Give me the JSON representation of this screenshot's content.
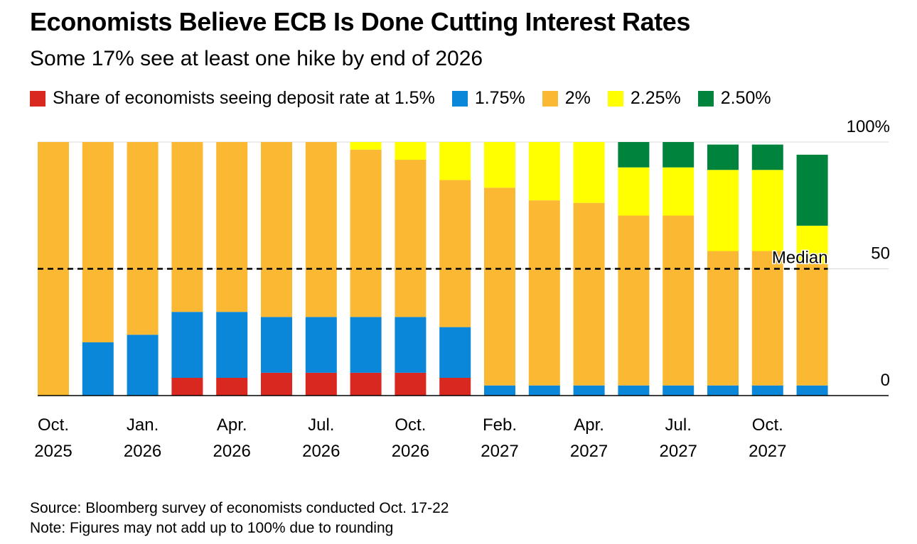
{
  "title": "Economists Believe ECB Is Done Cutting Interest Rates",
  "subtitle": "Some 17% see at least one hike by end of 2026",
  "legend": [
    {
      "label": "Share of economists seeing deposit rate at 1.5%",
      "color": "#d9281f"
    },
    {
      "label": "1.75%",
      "color": "#0b87d9"
    },
    {
      "label": "2%",
      "color": "#fbb832"
    },
    {
      "label": "2.25%",
      "color": "#ffff00"
    },
    {
      "label": "2.50%",
      "color": "#00843d"
    }
  ],
  "footer": {
    "source": "Source: Bloomberg survey of economists conducted Oct. 17-22",
    "note": "Note: Figures may not add up to 100% due to rounding"
  },
  "chart_data": {
    "type": "bar",
    "stacked": true,
    "ylim": [
      0,
      100
    ],
    "yticks": [
      {
        "value": 100,
        "label": "100%"
      },
      {
        "value": 50,
        "label": "50"
      },
      {
        "value": 0,
        "label": "0"
      }
    ],
    "median": {
      "value": 50,
      "label": "Median"
    },
    "x_labels": [
      {
        "index": 0,
        "month": "Oct.",
        "year": "2025"
      },
      {
        "index": 2,
        "month": "Jan.",
        "year": "2026"
      },
      {
        "index": 4,
        "month": "Apr.",
        "year": "2026"
      },
      {
        "index": 6,
        "month": "Jul.",
        "year": "2026"
      },
      {
        "index": 8,
        "month": "Oct.",
        "year": "2026"
      },
      {
        "index": 10,
        "month": "Feb.",
        "year": "2027"
      },
      {
        "index": 12,
        "month": "Apr.",
        "year": "2027"
      },
      {
        "index": 14,
        "month": "Jul.",
        "year": "2027"
      },
      {
        "index": 16,
        "month": "Oct.",
        "year": "2027"
      }
    ],
    "series": [
      {
        "name": "1.5%",
        "color": "#d9281f",
        "values": [
          0,
          0,
          0,
          7,
          7,
          9,
          9,
          9,
          9,
          7,
          0,
          0,
          0,
          0,
          0,
          0,
          0,
          0
        ]
      },
      {
        "name": "1.75%",
        "color": "#0b87d9",
        "values": [
          0,
          21,
          24,
          26,
          26,
          22,
          22,
          22,
          22,
          20,
          4,
          4,
          4,
          4,
          4,
          4,
          4,
          4
        ]
      },
      {
        "name": "2%",
        "color": "#fbb832",
        "values": [
          100,
          79,
          76,
          67,
          67,
          69,
          69,
          66,
          62,
          58,
          78,
          73,
          72,
          67,
          67,
          53,
          53,
          48
        ]
      },
      {
        "name": "2.25%",
        "color": "#ffff00",
        "values": [
          0,
          0,
          0,
          0,
          0,
          0,
          0,
          3,
          7,
          15,
          18,
          23,
          24,
          19,
          19,
          32,
          32,
          15
        ]
      },
      {
        "name": "2.50%",
        "color": "#00843d",
        "values": [
          0,
          0,
          0,
          0,
          0,
          0,
          0,
          0,
          0,
          0,
          0,
          0,
          0,
          10,
          10,
          10,
          10,
          28
        ]
      }
    ]
  }
}
